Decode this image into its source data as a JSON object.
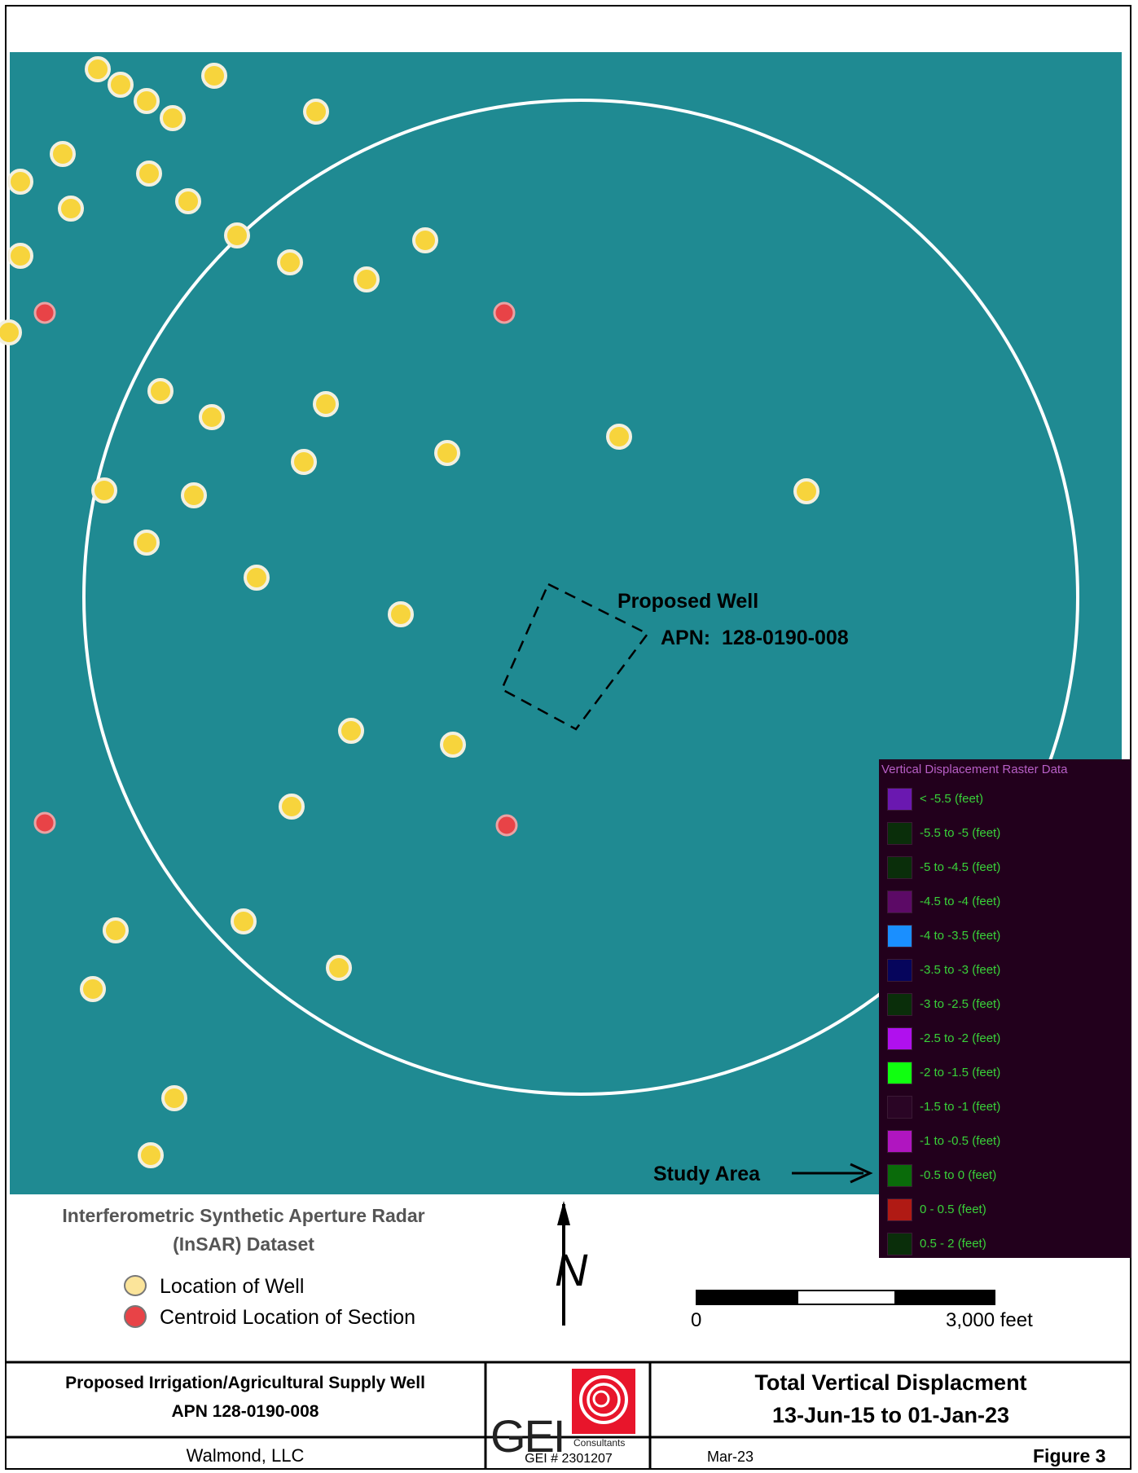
{
  "map": {
    "background_color": "#1f8a92",
    "ring_color": "#ffffff",
    "well_color": "#f7d43c",
    "centroid_color": "#e84347",
    "parcel_label": "Proposed Well",
    "parcel_apn": "APN:  128-0190-008",
    "study_area_label": "Study Area"
  },
  "legend": {
    "title": "Vertical Displacement Raster Data",
    "items": [
      {
        "label": "< -5.5 (feet)",
        "color": "#6a18b0"
      },
      {
        "label": "-5.5 to -5 (feet)",
        "color": "#0a2e0a"
      },
      {
        "label": "-5 to -4.5 (feet)",
        "color": "#0a2e0a"
      },
      {
        "label": "-4.5 to -4 (feet)",
        "color": "#5c0a66"
      },
      {
        "label": "-4 to -3.5 (feet)",
        "color": "#1a8fff"
      },
      {
        "label": "-3.5 to -3 (feet)",
        "color": "#06055c"
      },
      {
        "label": "-3 to -2.5 (feet)",
        "color": "#0a2e0a"
      },
      {
        "label": "-2.5 to -2 (feet)",
        "color": "#b010ee"
      },
      {
        "label": "-2 to -1.5 (feet)",
        "color": "#10ff10"
      },
      {
        "label": "-1.5 to -1 (feet)",
        "color": "#2a0525"
      },
      {
        "label": "-1 to -0.5 (feet)",
        "color": "#b015c0"
      },
      {
        "label": "-0.5 to 0 (feet)",
        "color": "#0a6b0a"
      },
      {
        "label": "0 - 0.5 (feet)",
        "color": "#b01a14"
      },
      {
        "label": "0.5 - 2 (feet)",
        "color": "#0a2e0a"
      }
    ]
  },
  "dataset_legend": {
    "title_line1": "Interferometric Synthetic Aperture Radar",
    "title_line2": "(InSAR) Dataset",
    "well_label": "Location of Well",
    "centroid_label": "Centroid Location of Section"
  },
  "north_arrow": {
    "letter": "N"
  },
  "scale_bar": {
    "start_label": "0",
    "end_label": "3,000 feet"
  },
  "title_block": {
    "project_line1": "Proposed Irrigation/Agricultural Supply Well",
    "project_line2": "APN 128-0190-008",
    "client": "Walmond, LLC",
    "logo_text": "GEI",
    "logo_sub": "Consultants",
    "job_number": "GEI # 2301207",
    "title_line1": "Total Vertical Displacment",
    "title_line2": "13-Jun-15 to 01-Jan-23",
    "date": "Mar-23",
    "figure": "Figure 3"
  }
}
